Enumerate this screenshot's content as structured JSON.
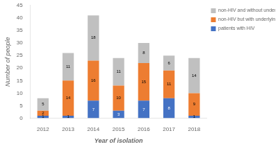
{
  "chart_data": {
    "type": "bar",
    "stacked": true,
    "categories": [
      "2012",
      "2013",
      "2014",
      "2015",
      "2016",
      "2017",
      "2018"
    ],
    "series": [
      {
        "name": "patients with HIV",
        "color": "#4472c4",
        "values": [
          1,
          1,
          7,
          3,
          7,
          8,
          1
        ]
      },
      {
        "name": "non-HIV but with underlying diseases",
        "color": "#ed7d31",
        "values": [
          2,
          14,
          16,
          10,
          15,
          11,
          9
        ]
      },
      {
        "name": "non-HIV and without underlying diseases",
        "color": "#c0c0c0",
        "values": [
          5,
          11,
          18,
          11,
          8,
          6,
          14
        ]
      }
    ],
    "xlabel": "Year of isolation",
    "ylabel": "Number of people",
    "ylim": [
      0,
      45
    ],
    "yticks": [
      0,
      5,
      10,
      15,
      20,
      25,
      30,
      35,
      40,
      45
    ],
    "grid": false,
    "legend": "upper right",
    "data_labels": true
  }
}
